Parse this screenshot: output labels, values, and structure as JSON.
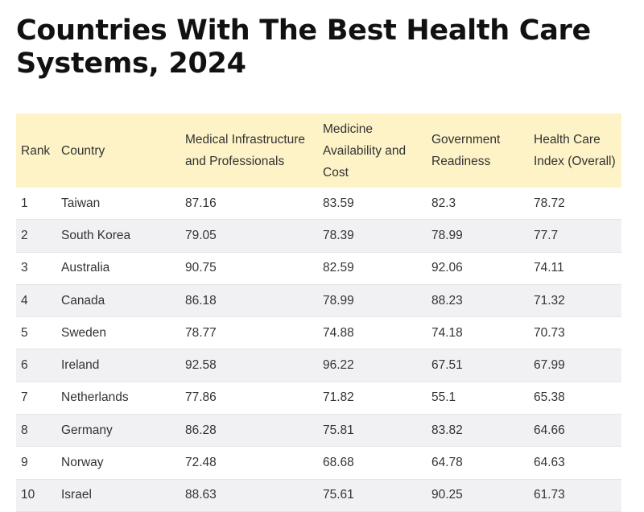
{
  "chart_data": {
    "type": "table",
    "title": "Countries With The Best Health Care Systems, 2024",
    "columns": [
      "Rank",
      "Country",
      "Medical Infrastructure and Professionals",
      "Medicine Availability and Cost",
      "Government Readiness",
      "Health Care Index (Overall)"
    ],
    "rows": [
      [
        "1",
        "Taiwan",
        "87.16",
        "83.59",
        "82.3",
        "78.72"
      ],
      [
        "2",
        "South Korea",
        "79.05",
        "78.39",
        "78.99",
        "77.7"
      ],
      [
        "3",
        "Australia",
        "90.75",
        "82.59",
        "92.06",
        "74.11"
      ],
      [
        "4",
        "Canada",
        "86.18",
        "78.99",
        "88.23",
        "71.32"
      ],
      [
        "5",
        "Sweden",
        "78.77",
        "74.88",
        "74.18",
        "70.73"
      ],
      [
        "6",
        "Ireland",
        "92.58",
        "96.22",
        "67.51",
        "67.99"
      ],
      [
        "7",
        "Netherlands",
        "77.86",
        "71.82",
        "55.1",
        "65.38"
      ],
      [
        "8",
        "Germany",
        "86.28",
        "75.81",
        "83.82",
        "64.66"
      ],
      [
        "9",
        "Norway",
        "72.48",
        "68.68",
        "64.78",
        "64.63"
      ],
      [
        "10",
        "Israel",
        "88.63",
        "75.61",
        "90.25",
        "61.73"
      ]
    ]
  },
  "colors": {
    "header_background": "#fdf3c7",
    "stripe_background": "#f1f1f3",
    "title_text": "#111111",
    "body_text": "#333333"
  }
}
